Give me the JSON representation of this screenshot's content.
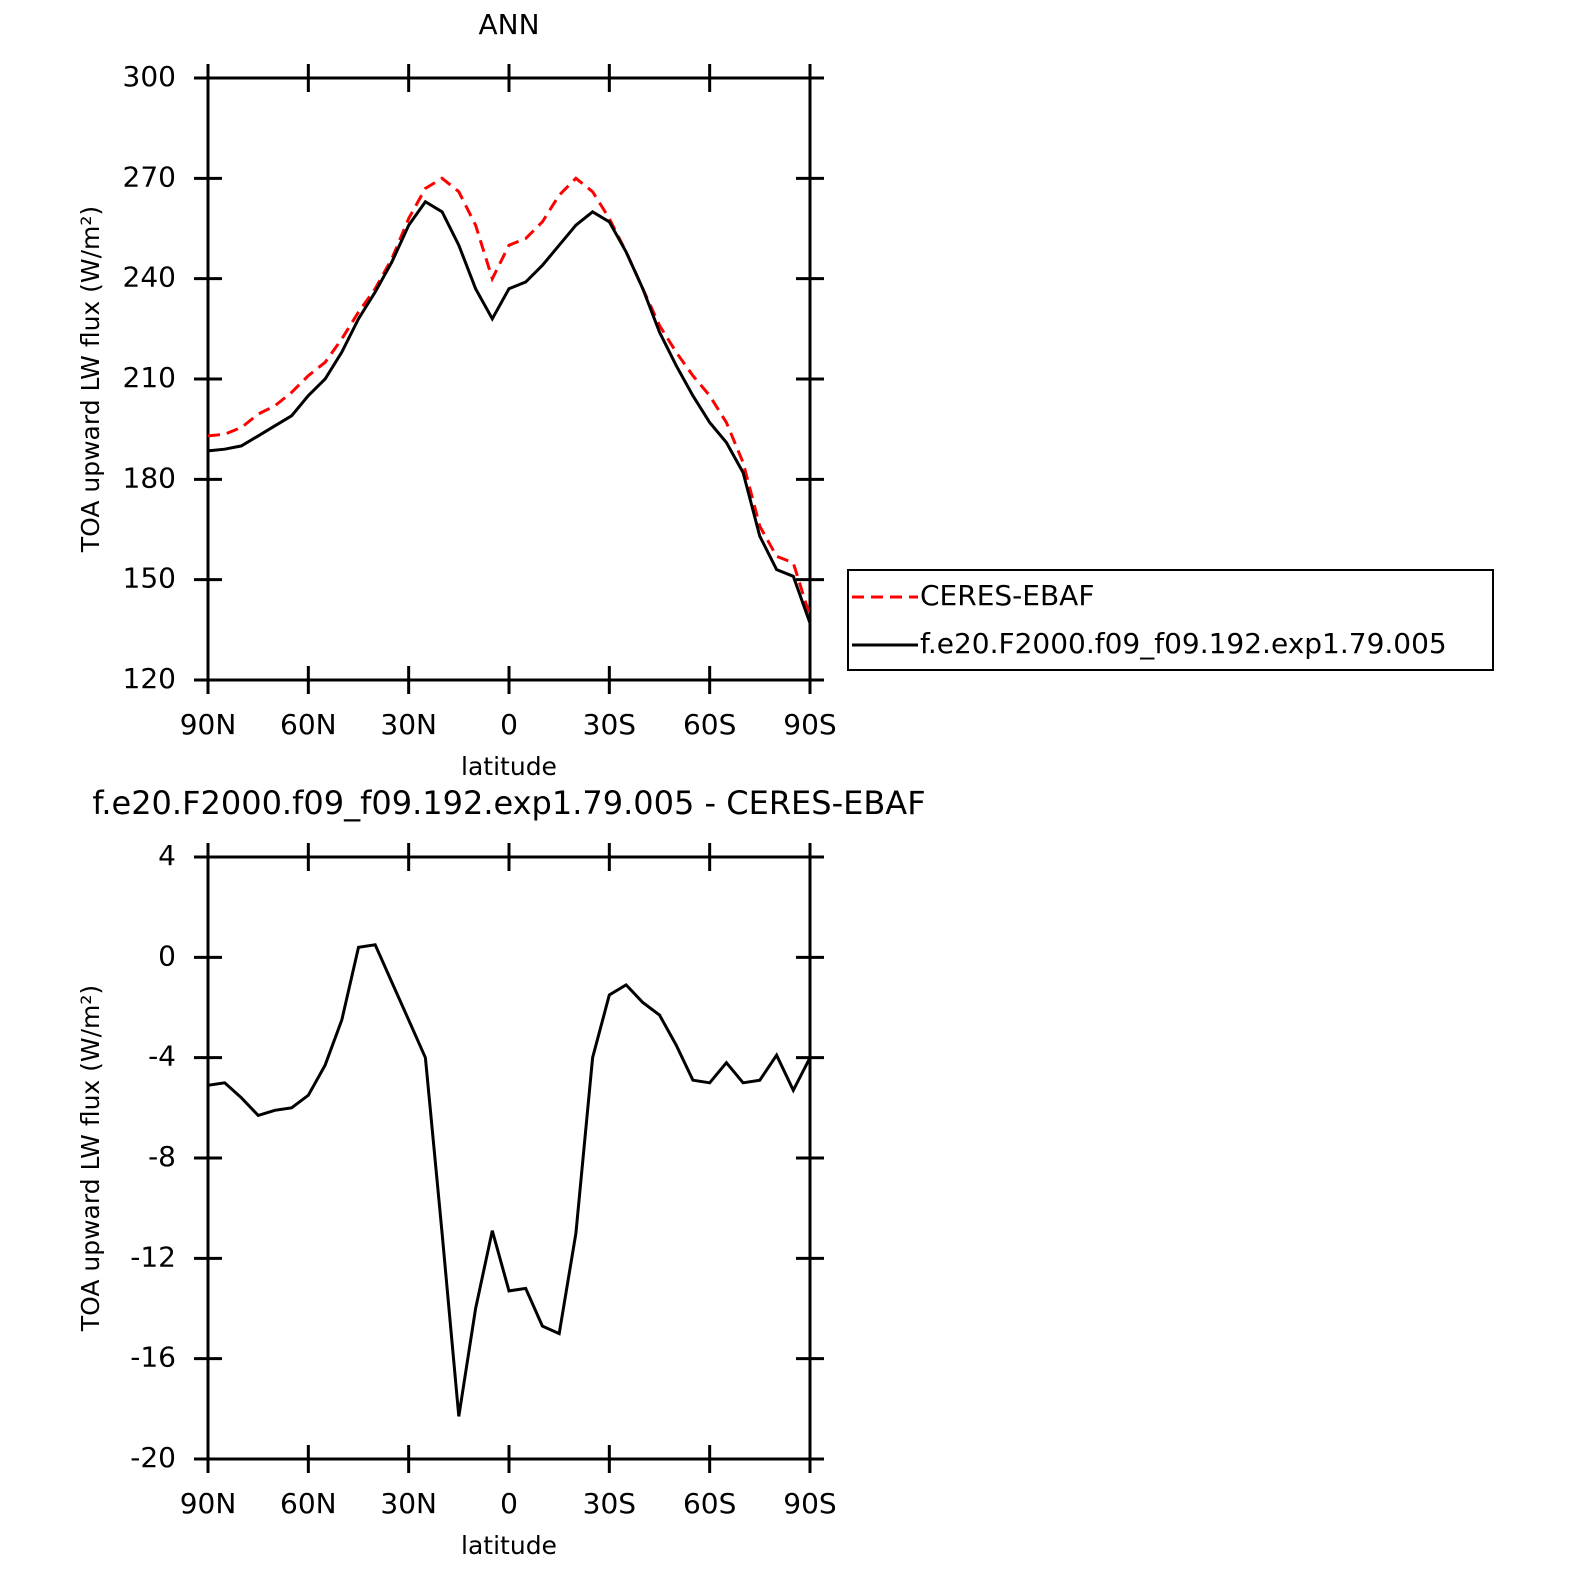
{
  "chart_data": [
    {
      "type": "line",
      "title": "ANN",
      "xlabel": "latitude",
      "ylabel": "TOA upward LW flux (W/m²)",
      "x": [
        90,
        85,
        80,
        75,
        70,
        65,
        60,
        55,
        50,
        45,
        40,
        35,
        30,
        25,
        20,
        15,
        10,
        5,
        0,
        -5,
        -10,
        -15,
        -20,
        -25,
        -30,
        -35,
        -40,
        -45,
        -50,
        -55,
        -60,
        -65,
        -70,
        -75,
        -80,
        -85,
        -90
      ],
      "xlim": [
        90,
        -90
      ],
      "xticks": [
        {
          "value": 90,
          "label": "90N"
        },
        {
          "value": 60,
          "label": "60N"
        },
        {
          "value": 30,
          "label": "30N"
        },
        0,
        {
          "value": -30,
          "label": "30S"
        },
        {
          "value": -60,
          "label": "60S"
        },
        {
          "value": -90,
          "label": "90S"
        }
      ],
      "ylim": [
        120,
        300
      ],
      "yticks": [
        120,
        150,
        180,
        210,
        240,
        270,
        300
      ],
      "legend": "right",
      "series": [
        {
          "name": "CERES-EBAF",
          "color": "#ff0000",
          "linestyle": "dashed",
          "values": [
            193,
            193.5,
            195.5,
            199.5,
            202,
            206,
            211,
            215,
            222,
            230,
            237,
            246,
            258,
            267,
            270,
            266,
            256,
            240,
            250,
            252,
            257,
            265,
            270,
            266,
            258,
            248,
            237,
            226,
            218,
            211,
            205,
            197,
            185,
            166,
            157,
            155,
            139
          ]
        },
        {
          "name": "f.e20.F2000.f09_f09.192.exp1.79.005",
          "color": "#000000",
          "linestyle": "solid",
          "values": [
            188.5,
            189,
            190,
            193,
            196,
            199,
            205,
            210,
            218,
            228,
            236,
            245,
            256,
            263,
            260,
            250,
            237,
            228,
            237,
            239,
            244,
            250,
            256,
            260,
            257,
            248,
            237,
            224,
            214,
            205,
            197,
            191,
            182,
            163,
            153,
            151,
            137
          ]
        }
      ]
    },
    {
      "type": "line",
      "title": "f.e20.F2000.f09_f09.192.exp1.79.005 - CERES-EBAF",
      "xlabel": "latitude",
      "ylabel": "TOA upward LW flux (W/m²)",
      "x": [
        90,
        85,
        80,
        75,
        70,
        65,
        60,
        55,
        50,
        45,
        40,
        35,
        30,
        25,
        20,
        15,
        10,
        5,
        0,
        -5,
        -10,
        -15,
        -20,
        -25,
        -30,
        -35,
        -40,
        -45,
        -50,
        -55,
        -60,
        -65,
        -70,
        -75,
        -80,
        -85,
        -90
      ],
      "xlim": [
        90,
        -90
      ],
      "xticks": [
        {
          "value": 90,
          "label": "90N"
        },
        {
          "value": 60,
          "label": "60N"
        },
        {
          "value": 30,
          "label": "30N"
        },
        0,
        {
          "value": -30,
          "label": "30S"
        },
        {
          "value": -60,
          "label": "60S"
        },
        {
          "value": -90,
          "label": "90S"
        }
      ],
      "ylim": [
        -20,
        4
      ],
      "yticks": [
        -20,
        -16,
        -12,
        -8,
        -4,
        0,
        4
      ],
      "color": "#000000",
      "values": [
        -5.1,
        -5.0,
        -5.6,
        -6.3,
        -6.1,
        -6.0,
        -5.5,
        -4.3,
        -2.5,
        0.4,
        0.5,
        -1.0,
        -2.5,
        -4,
        -11,
        -18.3,
        -14,
        -10.9,
        -13.3,
        -13.2,
        -14.7,
        -15,
        -11,
        -4,
        -1.5,
        -1.1,
        -1.8,
        -2.3,
        -3.5,
        -4.9,
        -5.0,
        -4.2,
        -5.0,
        -4.9,
        -3.9,
        -5.3,
        -4.0
      ]
    }
  ]
}
